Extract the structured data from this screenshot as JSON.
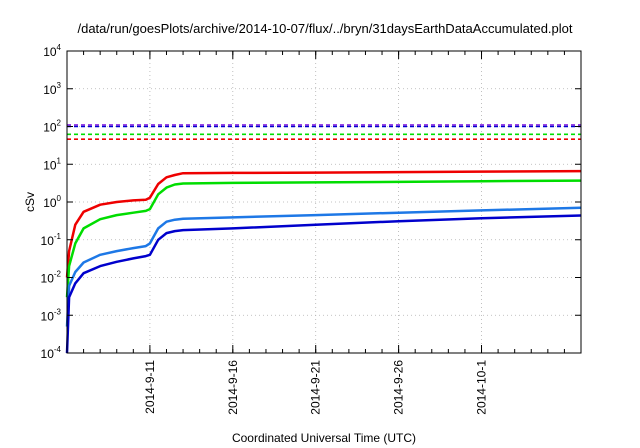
{
  "chart_data": {
    "type": "line",
    "title": "/data/run/goesPlots/archive/2014-10-07/flux/../bryn/31daysEarthDataAccumulated.plot",
    "xlabel": "Coordinated Universal Time (UTC)",
    "ylabel": "cSv",
    "yscale": "log",
    "ylim": [
      0.0001,
      10000
    ],
    "xlim": [
      "2014-09-06",
      "2014-10-07"
    ],
    "grid": true,
    "legend": "none",
    "y_ticks": [
      {
        "base": "10",
        "exp": "-4",
        "value": 0.0001
      },
      {
        "base": "10",
        "exp": "-3",
        "value": 0.001
      },
      {
        "base": "10",
        "exp": "-2",
        "value": 0.01
      },
      {
        "base": "10",
        "exp": "-1",
        "value": 0.1
      },
      {
        "base": "10",
        "exp": "0",
        "value": 1
      },
      {
        "base": "10",
        "exp": "1",
        "value": 10
      },
      {
        "base": "10",
        "exp": "2",
        "value": 100
      },
      {
        "base": "10",
        "exp": "3",
        "value": 1000
      },
      {
        "base": "10",
        "exp": "4",
        "value": 10000
      }
    ],
    "x_ticks": [
      {
        "label": "2014-9-11",
        "date": "2014-09-11"
      },
      {
        "label": "2014-9-16",
        "date": "2014-09-16"
      },
      {
        "label": "2014-9-21",
        "date": "2014-09-21"
      },
      {
        "label": "2014-9-26",
        "date": "2014-09-26"
      },
      {
        "label": "2014-10-1",
        "date": "2014-10-01"
      }
    ],
    "thresholds": [
      {
        "value": 110,
        "color": "#8a2be2"
      },
      {
        "value": 100,
        "color": "#0000cc"
      },
      {
        "value": 62,
        "color": "#00dd00"
      },
      {
        "value": 46,
        "color": "#ee0000"
      }
    ],
    "series": [
      {
        "color": "#ee0000",
        "x": [
          "2014-09-06",
          "2014-09-06 03:00",
          "2014-09-06 12:00",
          "2014-09-07",
          "2014-09-08",
          "2014-09-09",
          "2014-09-10",
          "2014-09-10 18:00",
          "2014-09-11",
          "2014-09-11 12:00",
          "2014-09-12",
          "2014-09-12 12:00",
          "2014-09-13",
          "2014-09-16",
          "2014-09-21",
          "2014-09-26",
          "2014-10-01",
          "2014-10-07"
        ],
        "values": [
          0.01,
          0.05,
          0.25,
          0.55,
          0.85,
          1.0,
          1.1,
          1.15,
          1.3,
          3.0,
          4.5,
          5.2,
          5.8,
          5.9,
          6.0,
          6.2,
          6.4,
          6.6
        ]
      },
      {
        "color": "#00dd00",
        "x": [
          "2014-09-06",
          "2014-09-06 03:00",
          "2014-09-06 12:00",
          "2014-09-07",
          "2014-09-08",
          "2014-09-09",
          "2014-09-10",
          "2014-09-10 18:00",
          "2014-09-11",
          "2014-09-11 12:00",
          "2014-09-12",
          "2014-09-12 12:00",
          "2014-09-13",
          "2014-09-16",
          "2014-09-21",
          "2014-09-26",
          "2014-10-01",
          "2014-10-07"
        ],
        "values": [
          0.003,
          0.02,
          0.08,
          0.2,
          0.35,
          0.45,
          0.52,
          0.58,
          0.65,
          1.6,
          2.4,
          2.9,
          3.1,
          3.2,
          3.3,
          3.4,
          3.55,
          3.7
        ]
      },
      {
        "color": "#1e78e6",
        "x": [
          "2014-09-06",
          "2014-09-06 03:00",
          "2014-09-06 12:00",
          "2014-09-07",
          "2014-09-08",
          "2014-09-09",
          "2014-09-10",
          "2014-09-10 18:00",
          "2014-09-11",
          "2014-09-11 12:00",
          "2014-09-12",
          "2014-09-12 12:00",
          "2014-09-13",
          "2014-09-16",
          "2014-09-21",
          "2014-09-26",
          "2014-10-01",
          "2014-10-07"
        ],
        "values": [
          0.0005,
          0.006,
          0.014,
          0.025,
          0.04,
          0.05,
          0.06,
          0.068,
          0.08,
          0.2,
          0.3,
          0.34,
          0.36,
          0.39,
          0.45,
          0.52,
          0.6,
          0.7
        ]
      },
      {
        "color": "#0000cc",
        "x": [
          "2014-09-06",
          "2014-09-06 03:00",
          "2014-09-06 12:00",
          "2014-09-07",
          "2014-09-08",
          "2014-09-09",
          "2014-09-10",
          "2014-09-10 18:00",
          "2014-09-11",
          "2014-09-11 12:00",
          "2014-09-12",
          "2014-09-12 12:00",
          "2014-09-13",
          "2014-09-16",
          "2014-09-21",
          "2014-09-26",
          "2014-10-01",
          "2014-10-07"
        ],
        "values": [
          0.0001,
          0.003,
          0.007,
          0.013,
          0.02,
          0.026,
          0.032,
          0.037,
          0.04,
          0.1,
          0.15,
          0.17,
          0.18,
          0.2,
          0.25,
          0.31,
          0.37,
          0.44
        ]
      }
    ]
  }
}
